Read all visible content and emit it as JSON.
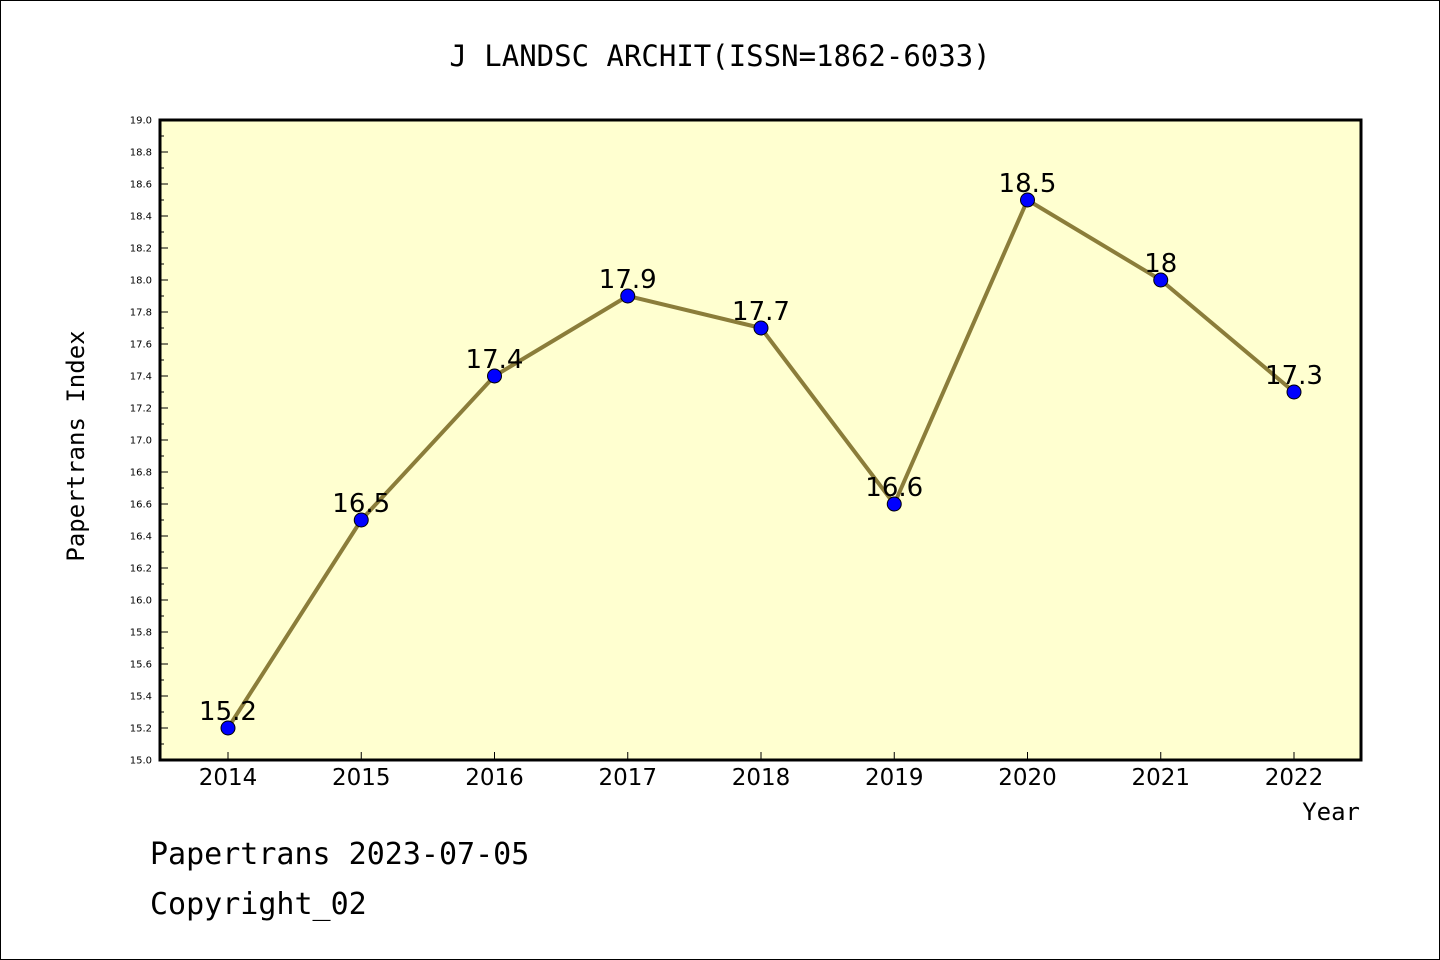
{
  "chart_data": {
    "type": "line",
    "title": "J LANDSC ARCHIT(ISSN=1862-6033)",
    "xlabel": "Year",
    "ylabel": "Papertrans Index",
    "categories": [
      "2014",
      "2015",
      "2016",
      "2017",
      "2018",
      "2019",
      "2020",
      "2021",
      "2022"
    ],
    "series": [
      {
        "values": [
          15.2,
          16.5,
          17.4,
          17.9,
          17.7,
          16.6,
          18.5,
          18,
          17.3
        ],
        "labels": [
          "15.2",
          "16.5",
          "17.4",
          "17.9",
          "17.7",
          "16.6",
          "18.5",
          "18",
          "17.3"
        ]
      }
    ],
    "ylim": [
      15.0,
      19.0
    ],
    "yticks": [
      "15.0",
      "15.2",
      "15.4",
      "15.6",
      "15.8",
      "16.0",
      "16.2",
      "16.4",
      "16.6",
      "16.8",
      "17.0",
      "17.2",
      "17.4",
      "17.6",
      "17.8",
      "18.0",
      "18.2",
      "18.4",
      "18.6",
      "18.8",
      "19.0"
    ],
    "grid": false,
    "colors": {
      "plot_background": "#ffffd0",
      "line": "#8b7d3a",
      "marker": "#0000ff"
    }
  },
  "footer": {
    "line1": "Papertrans 2023-07-05",
    "line2": "Copyright_02"
  }
}
